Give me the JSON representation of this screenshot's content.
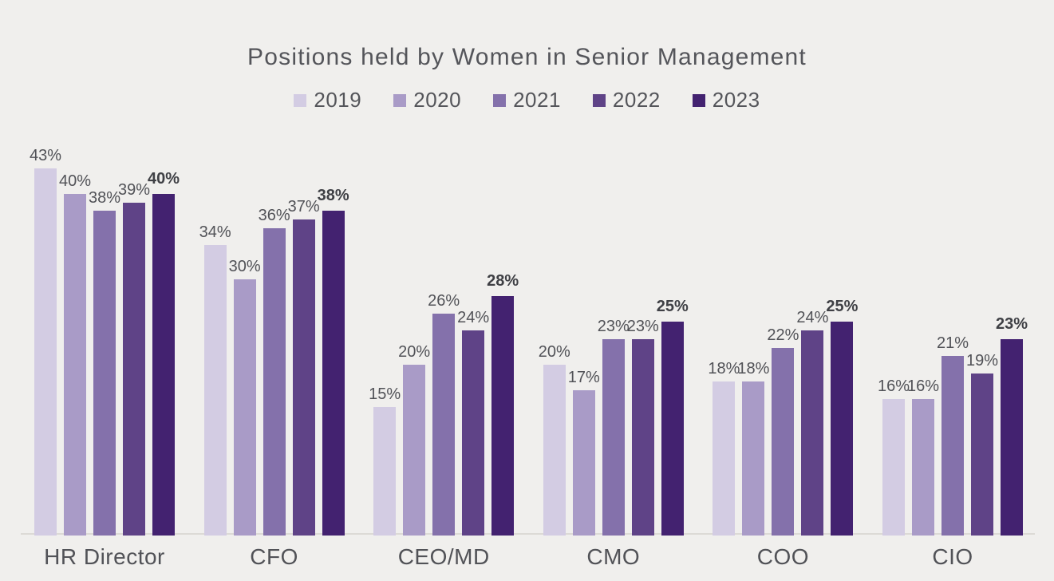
{
  "chart_data": {
    "type": "bar",
    "title": "Positions held by Women in Senior Management",
    "categories": [
      "HR Director",
      "CFO",
      "CEO/MD",
      "CMO",
      "COO",
      "CIO"
    ],
    "series": [
      {
        "name": "2019",
        "color": "#d3cce3",
        "values": [
          43,
          34,
          15,
          20,
          18,
          16
        ],
        "emphasized_labels": false
      },
      {
        "name": "2020",
        "color": "#a99bc7",
        "values": [
          40,
          30,
          20,
          17,
          18,
          16
        ],
        "emphasized_labels": false
      },
      {
        "name": "2021",
        "color": "#8471ab",
        "values": [
          38,
          36,
          26,
          23,
          22,
          21
        ],
        "emphasized_labels": false
      },
      {
        "name": "2022",
        "color": "#5f4387",
        "values": [
          39,
          37,
          24,
          23,
          24,
          19
        ],
        "emphasized_labels": false
      },
      {
        "name": "2023",
        "color": "#432270",
        "values": [
          40,
          38,
          28,
          25,
          25,
          23
        ],
        "emphasized_labels": true
      }
    ],
    "data_labels": true,
    "data_label_suffix": "%",
    "legend_position": "top",
    "grid": false,
    "xlabel": "",
    "ylabel": "",
    "ylim": [
      0,
      45
    ]
  },
  "style": {
    "background_color": "#f0efed",
    "title_color": "#54555a",
    "legend_text_color": "#54555a",
    "value_label_color": "#515257",
    "emphasized_value_label_color": "#3f4045",
    "category_label_color": "#515257",
    "axis_line_color": "#dcdad6"
  }
}
